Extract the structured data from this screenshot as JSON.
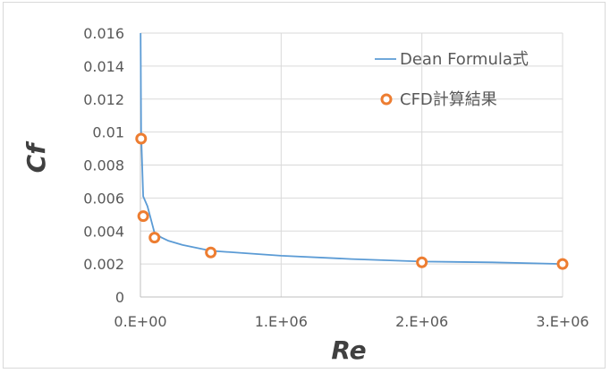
{
  "chart_data": {
    "type": "scatter",
    "title": "",
    "xlabel": "Re",
    "ylabel": "Cf",
    "xlim": [
      0,
      3000000
    ],
    "ylim": [
      0,
      0.016
    ],
    "x_ticks": [
      0,
      1000000,
      2000000,
      3000000
    ],
    "x_tick_labels": [
      "0.E+00",
      "1.E+06",
      "2.E+06",
      "3.E+06"
    ],
    "y_ticks": [
      0,
      0.002,
      0.004,
      0.006,
      0.008,
      0.01,
      0.012,
      0.014,
      0.016
    ],
    "y_tick_labels": [
      "0",
      "0.002",
      "0.004",
      "0.006",
      "0.008",
      "0.01",
      "0.012",
      "0.014",
      "0.016"
    ],
    "grid": true,
    "legend_position": "top-right",
    "series": [
      {
        "name": "Dean Formula式",
        "kind": "line",
        "color": "#5b9bd5",
        "x": [
          1000,
          5000,
          20000,
          50000,
          100000,
          150000,
          200000,
          300000,
          500000,
          750000,
          1000000,
          1500000,
          2000000,
          2500000,
          3000000
        ],
        "y": [
          0.016,
          0.0099,
          0.0061,
          0.0055,
          0.0039,
          0.0036,
          0.0034,
          0.00315,
          0.0028,
          0.00265,
          0.0025,
          0.0023,
          0.00215,
          0.0021,
          0.002
        ]
      },
      {
        "name": "CFD計算結果",
        "kind": "marker",
        "color": "#ed7d31",
        "x": [
          5000,
          20000,
          100000,
          500000,
          2000000,
          3000000
        ],
        "y": [
          0.0096,
          0.0049,
          0.0036,
          0.0027,
          0.0021,
          0.002
        ]
      }
    ]
  }
}
